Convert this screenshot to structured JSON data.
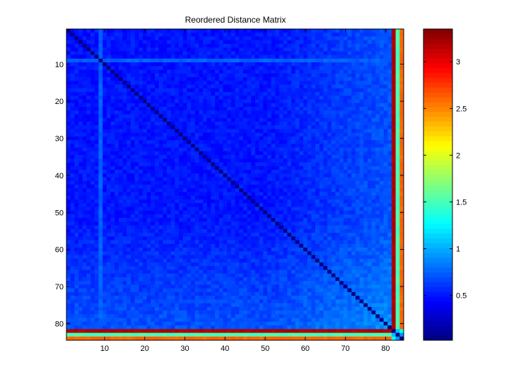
{
  "chart_data": [
    {
      "type": "heatmap",
      "title": "Reordered Distance Matrix",
      "xlabel": "",
      "ylabel": "",
      "size": 84,
      "xlim": [
        0.5,
        84.5
      ],
      "ylim": [
        0.5,
        84.5
      ],
      "y_direction": "reverse",
      "x_ticks": [
        10,
        20,
        30,
        40,
        50,
        60,
        70,
        80
      ],
      "y_ticks": [
        10,
        20,
        30,
        40,
        50,
        60,
        70,
        80
      ],
      "colormap": "jet",
      "clim": [
        0.02,
        3.35
      ],
      "diagonal_value": 0.02,
      "typical_value_range": [
        0.4,
        0.7
      ],
      "structure": {
        "gradual_increase_from_row": 50,
        "gradual_increase_to_row": 81,
        "value_at_row_50": 0.5,
        "value_at_row_81": 0.9,
        "lighter_stripe_index": 9,
        "lighter_stripe_value": 0.75,
        "outlier_rows": [
          {
            "index": 82,
            "value": 3.2
          },
          {
            "index": 83,
            "value": 1.5
          },
          {
            "index": 84,
            "value": 2.6
          }
        ]
      },
      "grid": false
    },
    {
      "type": "colorbar",
      "colormap": "jet",
      "range": [
        0.02,
        3.35
      ],
      "ticks": [
        0.5,
        1,
        1.5,
        2,
        2.5,
        3
      ],
      "tick_labels": [
        "0.5",
        "1",
        "1.5",
        "2",
        "2.5",
        "3"
      ]
    }
  ]
}
